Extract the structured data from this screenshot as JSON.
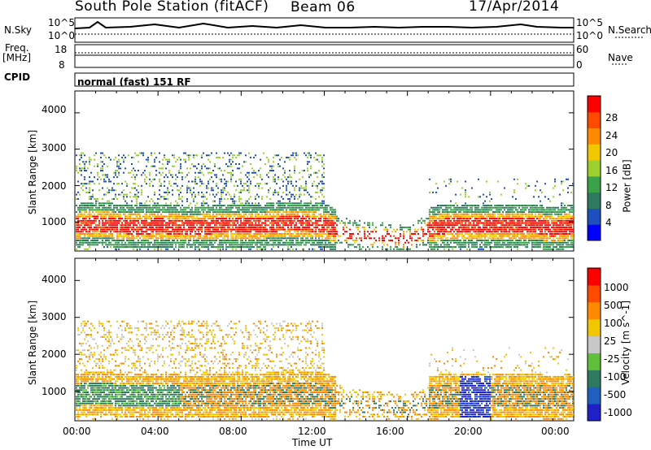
{
  "header": {
    "station": "South Pole Station (fitACF)",
    "beam": "Beam 06",
    "date": "17/Apr/2014"
  },
  "top_panel": {
    "nsky_label": "N.Sky",
    "nsearch_label": "N.Search",
    "freq_label_1": "Freq.",
    "freq_label_2": "[MHz]",
    "nave_label": "Nave",
    "cpid_label": "CPID",
    "cpid_text": "normal (fast) 151 RF",
    "noise_ticks_left": [
      "10^5",
      "10^0"
    ],
    "noise_ticks_right": [
      "10^5",
      "10^0"
    ],
    "freq_ticks": [
      "18",
      "8"
    ],
    "nave_ticks": [
      "60",
      "0"
    ]
  },
  "time_axis": {
    "ticks": [
      "00:00",
      "04:00",
      "08:00",
      "12:00",
      "16:00",
      "20:00",
      "00:00"
    ],
    "label": "Time UT"
  },
  "chart_data": [
    {
      "type": "heatmap",
      "xlabel": "Time UT",
      "ylabel": "Slant Range [km]",
      "ylim": [
        200,
        4600
      ],
      "yticks": [
        "1000",
        "2000",
        "3000",
        "4000"
      ],
      "colorbar": {
        "label": "Power [dB]",
        "ticks": [
          "28",
          "24",
          "20",
          "16",
          "12",
          "8",
          "4"
        ],
        "colors": [
          "#0000ff",
          "#1e4fbf",
          "#2f7a5f",
          "#3aa24a",
          "#9bd02e",
          "#f2c600",
          "#ff8a00",
          "#ff4a00",
          "#ff0000"
        ]
      },
      "series": [
        {
          "x": [
            0,
            1,
            2,
            3,
            4,
            5,
            6,
            7,
            8,
            9,
            10,
            11,
            12,
            13,
            14,
            15,
            16,
            17,
            18,
            19,
            20,
            21,
            22,
            23,
            24
          ],
          "y": [
            900,
            950,
            900,
            850,
            900,
            850,
            850,
            900,
            900,
            900,
            950,
            950,
            900,
            700,
            600,
            600,
            500,
            800,
            900,
            900,
            900,
            900,
            900,
            800,
            900
          ]
        }
      ]
    },
    {
      "type": "heatmap",
      "xlabel": "Time UT",
      "ylabel": "Slant Range [km]",
      "ylim": [
        200,
        4600
      ],
      "yticks": [
        "1000",
        "2000",
        "3000",
        "4000"
      ],
      "colorbar": {
        "label": "Velocity [m s^-1]",
        "ticks": [
          "1000",
          "500",
          "100",
          "25",
          "-25",
          "-100",
          "-500",
          "-1000"
        ],
        "colors": [
          "#2020c8",
          "#1f5fbf",
          "#2f7a5f",
          "#5fbf3a",
          "#c8c8c8",
          "#f2c600",
          "#ff8a00",
          "#ff4a00",
          "#ff0000"
        ]
      },
      "series": [
        {
          "x": [
            0,
            1,
            2,
            3,
            4,
            5,
            6,
            7,
            8,
            9,
            10,
            11,
            12,
            13,
            14,
            15,
            16,
            17,
            18,
            19,
            20,
            21,
            22,
            23,
            24
          ],
          "y": [
            900,
            950,
            900,
            850,
            900,
            850,
            850,
            900,
            900,
            900,
            950,
            950,
            900,
            700,
            600,
            600,
            500,
            800,
            900,
            900,
            900,
            900,
            900,
            800,
            900
          ]
        }
      ]
    }
  ]
}
